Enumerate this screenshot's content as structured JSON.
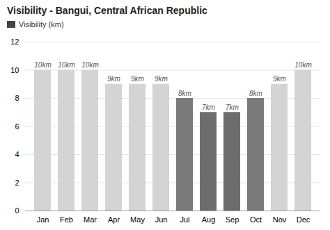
{
  "chart_data": {
    "type": "bar",
    "title": "Visibility - Bangui, Central African Republic",
    "categories": [
      "Jan",
      "Feb",
      "Mar",
      "Apr",
      "May",
      "Jun",
      "Jul",
      "Aug",
      "Sep",
      "Oct",
      "Nov",
      "Dec"
    ],
    "series": [
      {
        "name": "Visibility (km)",
        "color": "#444444",
        "values": [
          10,
          10,
          10,
          9,
          9,
          9,
          8,
          7,
          7,
          8,
          9,
          10
        ],
        "value_labels": [
          "10km",
          "10km",
          "10km",
          "9km",
          "9km",
          "9km",
          "8km",
          "7km",
          "7km",
          "8km",
          "9km",
          "10km"
        ]
      }
    ],
    "colors": [
      "#d4d4d4",
      "#d4d4d4",
      "#d4d4d4",
      "#d4d4d4",
      "#d4d4d4",
      "#d4d4d4",
      "#7a7a7a",
      "#6d6d6d",
      "#6d6d6d",
      "#7a7a7a",
      "#d4d4d4",
      "#d4d4d4"
    ],
    "ylim": [
      0,
      12
    ],
    "yticks": [
      0,
      2,
      4,
      6,
      8,
      10,
      12
    ],
    "grid": true,
    "legend": "upper left",
    "data_labels": true
  }
}
